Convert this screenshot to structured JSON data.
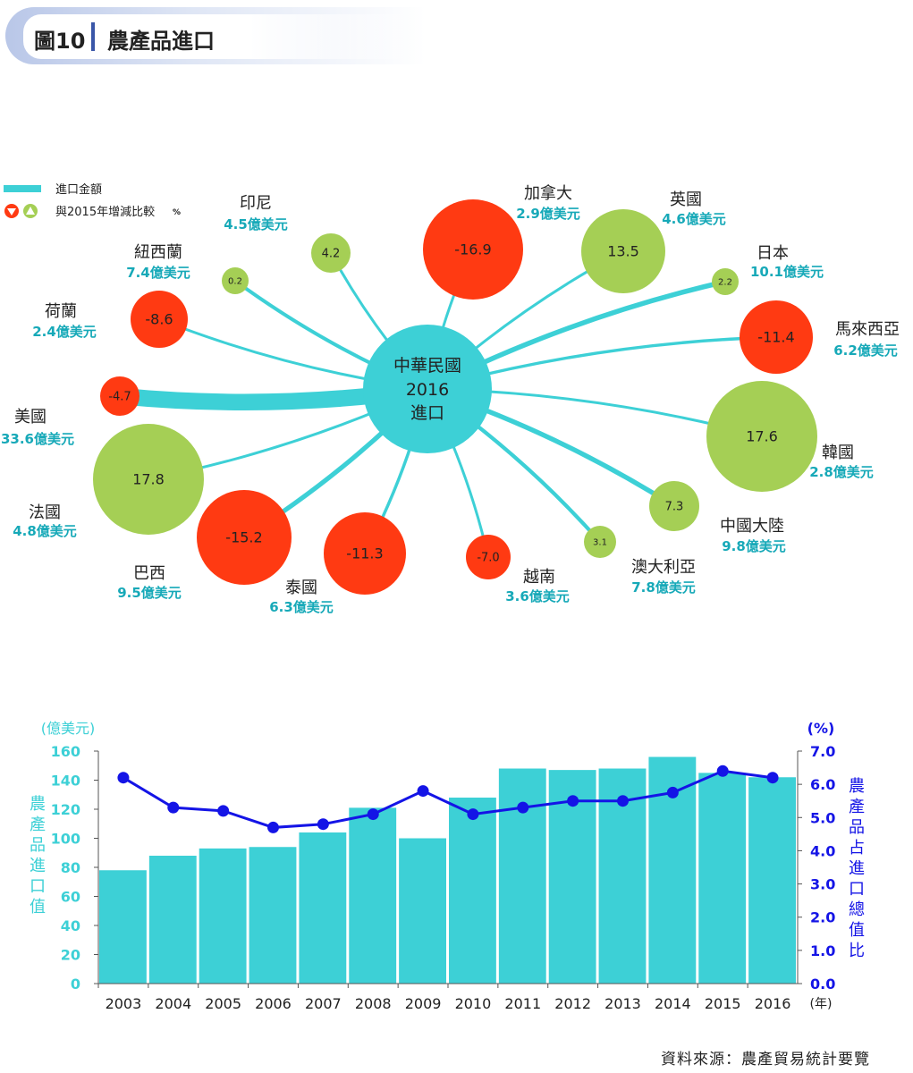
{
  "header": {
    "figure_label": "圖10",
    "title": "農產品進口"
  },
  "legend": {
    "amount_label": "進口金額",
    "change_label": "與2015年增減比較",
    "change_unit": "%"
  },
  "center": {
    "line1": "中華民國",
    "line2": "2016",
    "line3": "進口"
  },
  "colors": {
    "teal": "#3dd0d6",
    "red": "#ff3a12",
    "green": "#a5cf55",
    "blue": "#1414e6",
    "label_teal": "#17a9b8"
  },
  "chart_data": [
    {
      "type": "radial-bubble",
      "title": "農產品進口",
      "center_label": "中華民國 2016 進口",
      "unit_amount": "億美元",
      "unit_change": "%",
      "countries": [
        {
          "name": "印尼",
          "amount": 4.5,
          "amount_label": "4.5億美元",
          "change": 4.2,
          "change_label": "4.2"
        },
        {
          "name": "加拿大",
          "amount": 2.9,
          "amount_label": "2.9億美元",
          "change": -16.9,
          "change_label": "-16.9"
        },
        {
          "name": "英國",
          "amount": 4.6,
          "amount_label": "4.6億美元",
          "change": 13.5,
          "change_label": "13.5"
        },
        {
          "name": "日本",
          "amount": 10.1,
          "amount_label": "10.1億美元",
          "change": 2.2,
          "change_label": "2.2"
        },
        {
          "name": "馬來西亞",
          "amount": 6.2,
          "amount_label": "6.2億美元",
          "change": -11.4,
          "change_label": "-11.4"
        },
        {
          "name": "韓國",
          "amount": 2.8,
          "amount_label": "2.8億美元",
          "change": 17.6,
          "change_label": "17.6"
        },
        {
          "name": "中國大陸",
          "amount": 9.8,
          "amount_label": "9.8億美元",
          "change": 7.3,
          "change_label": "7.3"
        },
        {
          "name": "澳大利亞",
          "amount": 7.8,
          "amount_label": "7.8億美元",
          "change": 3.1,
          "change_label": "3.1"
        },
        {
          "name": "越南",
          "amount": 3.6,
          "amount_label": "3.6億美元",
          "change": -7.0,
          "change_label": "-7.0"
        },
        {
          "name": "泰國",
          "amount": 6.3,
          "amount_label": "6.3億美元",
          "change": -11.3,
          "change_label": "-11.3"
        },
        {
          "name": "巴西",
          "amount": 9.5,
          "amount_label": "9.5億美元",
          "change": -15.2,
          "change_label": "-15.2"
        },
        {
          "name": "法國",
          "amount": 4.8,
          "amount_label": "4.8億美元",
          "change": 17.8,
          "change_label": "17.8"
        },
        {
          "name": "美國",
          "amount": 33.6,
          "amount_label": "33.6億美元",
          "change": -4.7,
          "change_label": "-4.7"
        },
        {
          "name": "荷蘭",
          "amount": 2.4,
          "amount_label": "2.4億美元",
          "change": -8.6,
          "change_label": "-8.6"
        },
        {
          "name": "紐西蘭",
          "amount": 7.4,
          "amount_label": "7.4億美元",
          "change": 0.2,
          "change_label": "0.2"
        }
      ]
    },
    {
      "type": "bar+line",
      "title": "",
      "categories": [
        "2003",
        "2004",
        "2005",
        "2006",
        "2007",
        "2008",
        "2009",
        "2010",
        "2011",
        "2012",
        "2013",
        "2014",
        "2015",
        "2016"
      ],
      "series": [
        {
          "name": "農產品進口值",
          "type": "bar",
          "axis": "left",
          "values": [
            78,
            88,
            93,
            94,
            104,
            121,
            100,
            128,
            148,
            147,
            148,
            156,
            145,
            142
          ]
        },
        {
          "name": "農產品占進口總值比",
          "type": "line",
          "axis": "right",
          "values": [
            6.2,
            5.3,
            5.2,
            4.7,
            4.8,
            5.1,
            5.8,
            5.1,
            5.3,
            5.5,
            5.5,
            5.75,
            6.4,
            6.2
          ]
        }
      ],
      "left_axis": {
        "unit": "(億美元)",
        "label": "農產品進口值",
        "ylim": [
          0,
          160
        ],
        "ticks": [
          "0",
          "20",
          "40",
          "60",
          "80",
          "100",
          "120",
          "140",
          "160"
        ]
      },
      "right_axis": {
        "unit": "(%)",
        "label": "農產品占進口總值比",
        "ylim": [
          0,
          7
        ],
        "ticks": [
          "0.0",
          "1.0",
          "2.0",
          "3.0",
          "4.0",
          "5.0",
          "6.0",
          "7.0"
        ]
      },
      "xlabel": "(年)"
    }
  ],
  "source_note": "資料來源：農產貿易統計要覽"
}
